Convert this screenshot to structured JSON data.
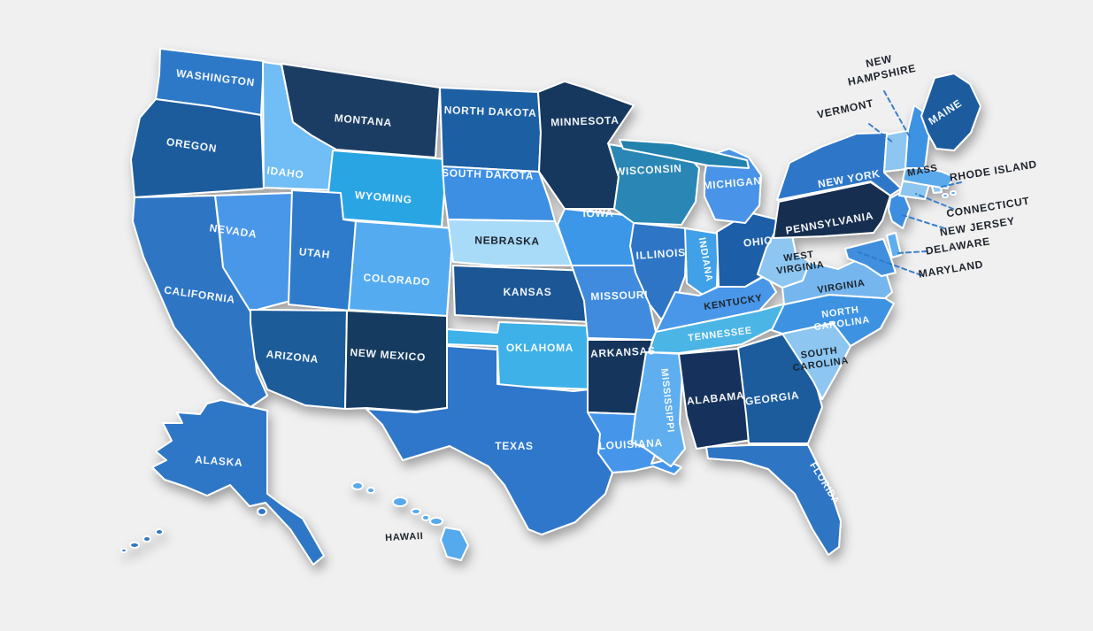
{
  "background": "#F0F0F1",
  "map": {
    "stroke_color": "#FFFFFF",
    "shadow_color": "rgba(0,0,0,0.35)",
    "leader_color": "#2E79C7",
    "callout_text_color": "#1E242B",
    "dark_label_color": "#1E242B",
    "white_label_color": "#FFFFFF",
    "upper_peninsula_fill": "#2381AD",
    "states": [
      {
        "id": "washington",
        "name": "WASHINGTON",
        "fill": "#2E79C7",
        "text": "#FFFFFF"
      },
      {
        "id": "oregon",
        "name": "OREGON",
        "fill": "#1F5C9C",
        "text": "#FFFFFF"
      },
      {
        "id": "california",
        "name": "CALIFORNIA",
        "fill": "#2E74C4",
        "text": "#FFFFFF"
      },
      {
        "id": "nevada",
        "name": "NEVADA",
        "fill": "#4A97E8",
        "text": "#FFFFFF"
      },
      {
        "id": "idaho",
        "name": "IDAHO",
        "fill": "#71BDF5",
        "text": "#FFFFFF"
      },
      {
        "id": "montana",
        "name": "MONTANA",
        "fill": "#1A3C64",
        "text": "#FFFFFF"
      },
      {
        "id": "wyoming",
        "name": "WYOMING",
        "fill": "#2AA5E3",
        "text": "#FFFFFF"
      },
      {
        "id": "utah",
        "name": "UTAH",
        "fill": "#2F7ACB",
        "text": "#FFFFFF"
      },
      {
        "id": "colorado",
        "name": "COLORADO",
        "fill": "#54ABF0",
        "text": "#FFFFFF"
      },
      {
        "id": "arizona",
        "name": "ARIZONA",
        "fill": "#1E5B99",
        "text": "#FFFFFF"
      },
      {
        "id": "new-mexico",
        "name": "NEW MEXICO",
        "fill": "#173A60",
        "text": "#FFFFFF"
      },
      {
        "id": "north-dakota",
        "name": "NORTH DAKOTA",
        "fill": "#1F5FA3",
        "text": "#FFFFFF"
      },
      {
        "id": "south-dakota",
        "name": "SOUTH DAKOTA",
        "fill": "#3E8FE3",
        "text": "#FFFFFF"
      },
      {
        "id": "nebraska",
        "name": "NEBRASKA",
        "fill": "#A7DBF8",
        "text": "#1E242B"
      },
      {
        "id": "kansas",
        "name": "KANSAS",
        "fill": "#1E5795",
        "text": "#FFFFFF"
      },
      {
        "id": "oklahoma",
        "name": "OKLAHOMA",
        "fill": "#3EB1E8",
        "text": "#FFFFFF"
      },
      {
        "id": "texas",
        "name": "TEXAS",
        "fill": "#2E77CA",
        "text": "#FFFFFF"
      },
      {
        "id": "minnesota",
        "name": "MINNESOTA",
        "fill": "#16375E",
        "text": "#FFFFFF"
      },
      {
        "id": "iowa",
        "name": "IOWA",
        "fill": "#3E97E8",
        "text": "#FFFFFF"
      },
      {
        "id": "missouri",
        "name": "MISSOURI",
        "fill": "#418BDE",
        "text": "#FFFFFF"
      },
      {
        "id": "arkansas",
        "name": "ARKANSAS",
        "fill": "#16365C",
        "text": "#FFFFFF"
      },
      {
        "id": "louisiana",
        "name": "LOUISIANA",
        "fill": "#4596EA",
        "text": "#FFFFFF"
      },
      {
        "id": "wisconsin",
        "name": "WISCONSIN",
        "fill": "#2B87B5",
        "text": "#FFFFFF"
      },
      {
        "id": "illinois",
        "name": "ILLINOIS",
        "fill": "#2E75C6",
        "text": "#FFFFFF"
      },
      {
        "id": "indiana",
        "name": "INDIANA",
        "fill": "#41A0E8",
        "text": "#FFFFFF"
      },
      {
        "id": "ohio",
        "name": "OHIO",
        "fill": "#1E5FA8",
        "text": "#FFFFFF"
      },
      {
        "id": "michigan",
        "name": "MICHIGAN",
        "fill": "#4A93E8",
        "text": "#FFFFFF"
      },
      {
        "id": "kentucky",
        "name": "KENTUCKY",
        "fill": "#4A97E8",
        "text": "#1E242B"
      },
      {
        "id": "tennessee",
        "name": "TENNESSEE",
        "fill": "#4BB5E5",
        "text": "#FFFFFF"
      },
      {
        "id": "mississippi",
        "name": "MISSISSIPPI",
        "fill": "#5FAEF0",
        "text": "#FFFFFF"
      },
      {
        "id": "alabama",
        "name": "ALABAMA",
        "fill": "#14335C",
        "text": "#FFFFFF"
      },
      {
        "id": "georgia",
        "name": "GEORGIA",
        "fill": "#1E5C9C",
        "text": "#FFFFFF"
      },
      {
        "id": "florida",
        "name": "FLORIDA",
        "fill": "#2E75C4",
        "text": "#FFFFFF"
      },
      {
        "id": "south-carolina",
        "name": "SOUTH CAROLINA",
        "lines": [
          "SOUTH",
          "CAROLINA"
        ],
        "fill": "#8CC6F1",
        "text": "#1E242B"
      },
      {
        "id": "north-carolina",
        "name": "NORTH CAROLINA",
        "lines": [
          "NORTH",
          "CAROLINA"
        ],
        "fill": "#3E93E2",
        "text": "#FFFFFF"
      },
      {
        "id": "virginia",
        "name": "VIRGINIA",
        "fill": "#74B6EE",
        "text": "#1E242B"
      },
      {
        "id": "west-virginia",
        "name": "WEST VIRGINIA",
        "lines": [
          "WEST",
          "VIRGINIA"
        ],
        "fill": "#8CC6F1",
        "text": "#1E242B"
      },
      {
        "id": "maryland",
        "name": "MARYLAND",
        "fill": "#3F8FDE",
        "text": "#1E242B",
        "callout": true
      },
      {
        "id": "delaware",
        "name": "DELAWARE",
        "fill": "#5FAEEF",
        "text": "#1E242B",
        "callout": true
      },
      {
        "id": "new-jersey",
        "name": "NEW JERSEY",
        "fill": "#3E8EE0",
        "text": "#1E242B",
        "callout": true
      },
      {
        "id": "pennsylvania",
        "name": "PENNSYLVANIA",
        "fill": "#142E4F",
        "text": "#FFFFFF"
      },
      {
        "id": "new-york",
        "name": "NEW YORK",
        "fill": "#2E77C8",
        "text": "#FFFFFF"
      },
      {
        "id": "connecticut",
        "name": "CONNECTICUT",
        "fill": "#8CC6F1",
        "text": "#1E242B",
        "callout": true
      },
      {
        "id": "rhode-island",
        "name": "RHODE ISLAND",
        "fill": "#8CC6F1",
        "text": "#1E242B",
        "callout": true
      },
      {
        "id": "massachusetts",
        "name": "MASS",
        "fill": "#5AA9EC",
        "text": "#1E242B"
      },
      {
        "id": "vermont",
        "name": "VERMONT",
        "fill": "#8CC6F1",
        "text": "#1E242B",
        "callout": true
      },
      {
        "id": "new-hampshire",
        "name": "NEW HAMPSHIRE",
        "lines": [
          "NEW",
          "HAMPSHIRE"
        ],
        "fill": "#3E92E2",
        "text": "#1E242B",
        "callout": true
      },
      {
        "id": "maine",
        "name": "MAINE",
        "fill": "#1C5B9E",
        "text": "#FFFFFF"
      },
      {
        "id": "alaska",
        "name": "ALASKA",
        "fill": "#2E77C6",
        "text": "#FFFFFF"
      },
      {
        "id": "hawaii",
        "name": "HAWAII",
        "fill": "#55A9ED",
        "text": "#1E242B"
      }
    ]
  }
}
